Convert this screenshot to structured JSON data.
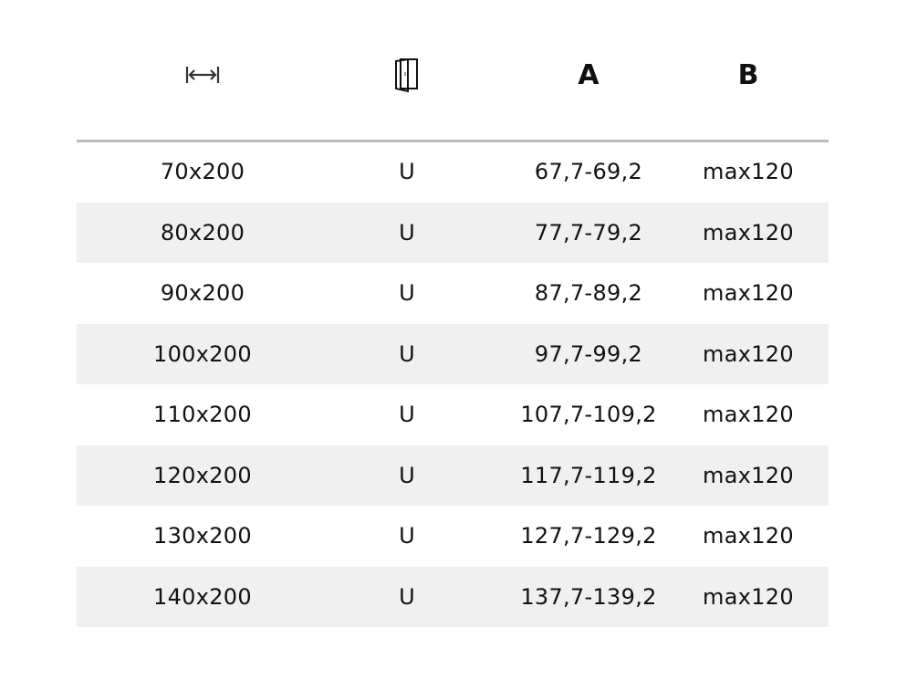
{
  "header": {
    "width_icon": "width-arrows-icon",
    "door_icon": "door-icon",
    "col_a": "A",
    "col_b": "B"
  },
  "rows": [
    {
      "size": "70x200",
      "type": "U",
      "a": "67,7-69,2",
      "b": "max120"
    },
    {
      "size": "80x200",
      "type": "U",
      "a": "77,7-79,2",
      "b": "max120"
    },
    {
      "size": "90x200",
      "type": "U",
      "a": "87,7-89,2",
      "b": "max120"
    },
    {
      "size": "100x200",
      "type": "U",
      "a": "97,7-99,2",
      "b": "max120"
    },
    {
      "size": "110x200",
      "type": "U",
      "a": "107,7-109,2",
      "b": "max120"
    },
    {
      "size": "120x200",
      "type": "U",
      "a": "117,7-119,2",
      "b": "max120"
    },
    {
      "size": "130x200",
      "type": "U",
      "a": "127,7-129,2",
      "b": "max120"
    },
    {
      "size": "140x200",
      "type": "U",
      "a": "137,7-139,2",
      "b": "max120"
    }
  ],
  "colors": {
    "stripe": "#f0f0f0",
    "rule": "#bdbdbd"
  }
}
